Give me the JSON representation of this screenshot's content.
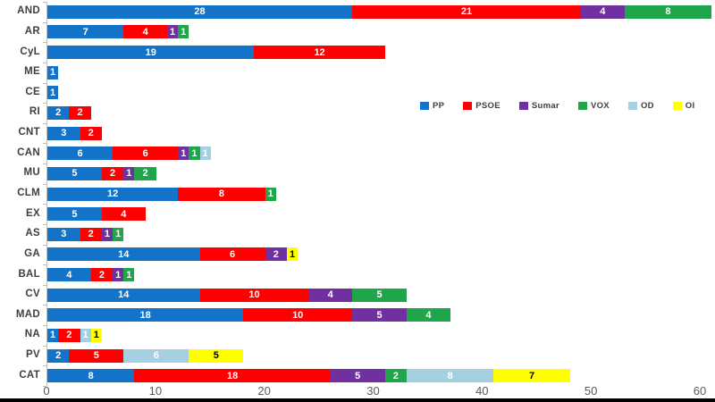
{
  "chart_data": {
    "type": "bar",
    "orientation": "horizontal",
    "stacked": true,
    "title": "",
    "xlabel": "",
    "ylabel": "",
    "grid": false,
    "xlim": [
      0,
      60
    ],
    "x_ticks": [
      "0",
      "10",
      "20",
      "30",
      "40",
      "50",
      "60"
    ],
    "legend_position": "middle-right",
    "categories": [
      "AND",
      "AR",
      "CyL",
      "ME",
      "CE",
      "RI",
      "CNT",
      "CAN",
      "MU",
      "CLM",
      "EX",
      "AS",
      "GA",
      "BAL",
      "CV",
      "MAD",
      "NA",
      "PV",
      "CAT"
    ],
    "series": [
      {
        "name": "PP",
        "color": "#1273C8",
        "label_color": "#ffffff",
        "values": [
          28,
          7,
          19,
          1,
          1,
          2,
          3,
          6,
          5,
          12,
          5,
          3,
          14,
          4,
          14,
          18,
          1,
          2,
          8
        ]
      },
      {
        "name": "PSOE",
        "color": "#FE0000",
        "label_color": "#ffffff",
        "values": [
          21,
          4,
          12,
          0,
          0,
          2,
          2,
          6,
          2,
          8,
          4,
          2,
          6,
          2,
          10,
          10,
          2,
          5,
          18
        ]
      },
      {
        "name": "Sumar",
        "color": "#7030A0",
        "label_color": "#ffffff",
        "values": [
          4,
          1,
          0,
          0,
          0,
          0,
          0,
          1,
          1,
          0,
          0,
          1,
          2,
          1,
          4,
          5,
          0,
          0,
          5
        ]
      },
      {
        "name": "VOX",
        "color": "#1FA54A",
        "label_color": "#ffffff",
        "values": [
          8,
          1,
          0,
          0,
          0,
          0,
          0,
          1,
          2,
          1,
          0,
          1,
          0,
          1,
          5,
          4,
          0,
          0,
          2
        ]
      },
      {
        "name": "OD",
        "color": "#A5D0E2",
        "label_color": "#ffffff",
        "values": [
          0,
          0,
          0,
          0,
          0,
          0,
          0,
          1,
          0,
          0,
          0,
          0,
          0,
          0,
          0,
          0,
          1,
          6,
          8
        ]
      },
      {
        "name": "OI",
        "color": "#FFFF00",
        "label_color": "#000000",
        "values": [
          0,
          0,
          0,
          0,
          0,
          0,
          0,
          0,
          0,
          0,
          0,
          0,
          1,
          0,
          0,
          0,
          1,
          5,
          7
        ]
      }
    ]
  },
  "style_colors": {
    "axis_line": "#bfbfbf",
    "axis_text": "#595959",
    "category_text": "#404040",
    "letterbox": "#000000",
    "background": "#ffffff"
  }
}
